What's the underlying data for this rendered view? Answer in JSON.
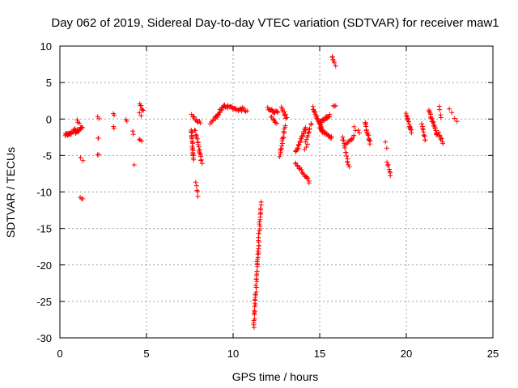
{
  "chart_data": {
    "type": "scatter",
    "title": "Day 062 of 2019, Sidereal Day-to-day VTEC variation (SDTVAR) for receiver maw1",
    "xlabel": "GPS time / hours",
    "ylabel": "SDTVAR / TECUs",
    "xlim": [
      0,
      25
    ],
    "ylim": [
      -30,
      10
    ],
    "xticks": [
      0,
      5,
      10,
      15,
      20,
      25
    ],
    "yticks": [
      -30,
      -25,
      -20,
      -15,
      -10,
      -5,
      0,
      5,
      10
    ],
    "grid": true,
    "marker": "+",
    "color": "#ff0000",
    "segments": [
      {
        "x0": 0.3,
        "x1": 0.6,
        "y0": -2.2,
        "y1": -2.0,
        "n": 14
      },
      {
        "x0": 0.6,
        "x1": 0.9,
        "y0": -2.0,
        "y1": -1.4,
        "n": 10
      },
      {
        "x0": 0.9,
        "x1": 1.3,
        "y0": -1.8,
        "y1": -1.1,
        "n": 16
      },
      {
        "x0": 1.0,
        "x1": 1.1,
        "y0": -0.3,
        "y1": -0.6,
        "n": 3
      },
      {
        "x0": 1.2,
        "x1": 1.3,
        "y0": -10.8,
        "y1": -11.0,
        "n": 3
      },
      {
        "x0": 1.2,
        "x1": 1.3,
        "y0": -5.4,
        "y1": -5.7,
        "n": 2
      },
      {
        "x0": 2.2,
        "x1": 2.25,
        "y0": 0.3,
        "y1": -0.1,
        "n": 2
      },
      {
        "x0": 2.2,
        "x1": 2.25,
        "y0": -2.7,
        "y1": -2.8,
        "n": 2
      },
      {
        "x0": 2.2,
        "x1": 2.25,
        "y0": -4.8,
        "y1": -5.0,
        "n": 2
      },
      {
        "x0": 3.1,
        "x1": 3.15,
        "y0": 0.6,
        "y1": 0.4,
        "n": 2
      },
      {
        "x0": 3.1,
        "x1": 3.15,
        "y0": -1.0,
        "y1": -1.2,
        "n": 2
      },
      {
        "x0": 3.8,
        "x1": 3.85,
        "y0": -0.2,
        "y1": -0.5,
        "n": 2
      },
      {
        "x0": 4.2,
        "x1": 4.25,
        "y0": -1.8,
        "y1": -1.9,
        "n": 2
      },
      {
        "x0": 4.3,
        "x1": 4.3,
        "y0": -6.3,
        "y1": -6.3,
        "n": 1
      },
      {
        "x0": 4.6,
        "x1": 4.8,
        "y0": 2.0,
        "y1": 1.2,
        "n": 6
      },
      {
        "x0": 4.6,
        "x1": 4.7,
        "y0": 0.8,
        "y1": 0.5,
        "n": 2
      },
      {
        "x0": 4.6,
        "x1": 4.7,
        "y0": -2.7,
        "y1": -3.1,
        "n": 3
      },
      {
        "x0": 7.6,
        "x1": 8.1,
        "y0": 0.5,
        "y1": -0.5,
        "n": 10
      },
      {
        "x0": 7.6,
        "x1": 7.7,
        "y0": -1.5,
        "y1": -5.5,
        "n": 22
      },
      {
        "x0": 7.8,
        "x1": 8.2,
        "y0": -1.5,
        "y1": -6.0,
        "n": 20
      },
      {
        "x0": 7.85,
        "x1": 7.95,
        "y0": -8.8,
        "y1": -10.5,
        "n": 5
      },
      {
        "x0": 8.7,
        "x1": 9.0,
        "y0": -0.5,
        "y1": 0.2,
        "n": 6
      },
      {
        "x0": 9.0,
        "x1": 9.5,
        "y0": 0.2,
        "y1": 1.9,
        "n": 16
      },
      {
        "x0": 9.5,
        "x1": 10.5,
        "y0": 1.8,
        "y1": 1.2,
        "n": 22
      },
      {
        "x0": 10.5,
        "x1": 10.8,
        "y0": 1.5,
        "y1": 1.1,
        "n": 6
      },
      {
        "x0": 11.2,
        "x1": 11.6,
        "y0": -28.4,
        "y1": -11.5,
        "n": 60
      },
      {
        "x0": 12.0,
        "x1": 12.6,
        "y0": 1.5,
        "y1": 0.8,
        "n": 16
      },
      {
        "x0": 12.2,
        "x1": 12.5,
        "y0": 0.3,
        "y1": -0.5,
        "n": 8
      },
      {
        "x0": 12.7,
        "x1": 13.0,
        "y0": -5.2,
        "y1": -0.8,
        "n": 18
      },
      {
        "x0": 12.8,
        "x1": 13.1,
        "y0": 1.6,
        "y1": 0.0,
        "n": 10
      },
      {
        "x0": 13.6,
        "x1": 14.2,
        "y0": -4.6,
        "y1": -1.2,
        "n": 24
      },
      {
        "x0": 13.6,
        "x1": 14.4,
        "y0": -6.0,
        "y1": -8.6,
        "n": 18
      },
      {
        "x0": 14.2,
        "x1": 14.5,
        "y0": -3.0,
        "y1": -0.6,
        "n": 10
      },
      {
        "x0": 14.1,
        "x1": 14.3,
        "y0": -4.3,
        "y1": -3.6,
        "n": 3
      },
      {
        "x0": 14.6,
        "x1": 15.2,
        "y0": 1.6,
        "y1": -1.8,
        "n": 26
      },
      {
        "x0": 15.0,
        "x1": 15.6,
        "y0": -0.5,
        "y1": 0.6,
        "n": 20
      },
      {
        "x0": 15.0,
        "x1": 15.7,
        "y0": -1.3,
        "y1": -2.6,
        "n": 18
      },
      {
        "x0": 15.7,
        "x1": 15.9,
        "y0": 8.6,
        "y1": 7.4,
        "n": 6
      },
      {
        "x0": 15.8,
        "x1": 15.9,
        "y0": 2.0,
        "y1": 1.7,
        "n": 3
      },
      {
        "x0": 16.3,
        "x1": 16.7,
        "y0": -2.4,
        "y1": -6.7,
        "n": 14
      },
      {
        "x0": 16.5,
        "x1": 17.0,
        "y0": -3.4,
        "y1": -2.4,
        "n": 10
      },
      {
        "x0": 17.0,
        "x1": 17.3,
        "y0": -1.2,
        "y1": -1.8,
        "n": 4
      },
      {
        "x0": 17.6,
        "x1": 17.9,
        "y0": -0.6,
        "y1": -3.3,
        "n": 16
      },
      {
        "x0": 18.8,
        "x1": 18.9,
        "y0": -3.2,
        "y1": -4.1,
        "n": 2
      },
      {
        "x0": 18.9,
        "x1": 19.1,
        "y0": -6.1,
        "y1": -7.6,
        "n": 8
      },
      {
        "x0": 20.0,
        "x1": 20.3,
        "y0": 0.6,
        "y1": -1.8,
        "n": 16
      },
      {
        "x0": 20.9,
        "x1": 21.1,
        "y0": -0.8,
        "y1": -3.0,
        "n": 10
      },
      {
        "x0": 21.3,
        "x1": 21.8,
        "y0": 1.2,
        "y1": -2.3,
        "n": 22
      },
      {
        "x0": 21.9,
        "x1": 22.1,
        "y0": -2.0,
        "y1": -3.2,
        "n": 8
      },
      {
        "x0": 21.9,
        "x1": 22.0,
        "y0": 1.6,
        "y1": 0.3,
        "n": 4
      },
      {
        "x0": 22.5,
        "x1": 22.9,
        "y0": 1.5,
        "y1": -0.5,
        "n": 4
      }
    ]
  }
}
